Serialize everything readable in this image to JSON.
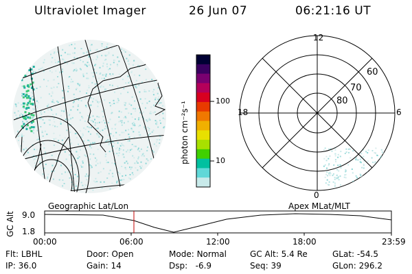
{
  "header": {
    "instrument": "Ultraviolet Imager",
    "date": "26 Jun 07",
    "time": "06:21:16 UT"
  },
  "colorbar": {
    "unit_label": "photon cm⁻²s⁻¹",
    "ticks": [
      "100",
      "10"
    ],
    "colors": [
      "#000033",
      "#3a0060",
      "#7a0070",
      "#b4005a",
      "#d80020",
      "#e83a00",
      "#f07800",
      "#f0b000",
      "#e8e000",
      "#a8e000",
      "#40d000",
      "#00c0a0",
      "#60d8d8",
      "#c8eaea"
    ]
  },
  "polar_plot": {
    "mlt_labels": [
      "12",
      "18",
      "6",
      "0"
    ],
    "lat_labels": [
      "60",
      "70",
      "80"
    ]
  },
  "timeline": {
    "left_label": "Geographic Lat/Lon",
    "right_label": "Apex  MLat/MLT",
    "axis_title": "GC Alt",
    "y_ticks": [
      "9.0",
      "1.8"
    ],
    "x_ticks": [
      "00:00",
      "06:00",
      "12:00",
      "18:00",
      "23:59"
    ],
    "current_marker_color": "#c00000"
  },
  "footer": {
    "row1": [
      {
        "label": "Flt:",
        "value": "LBHL"
      },
      {
        "label": "Door:",
        "value": "Open"
      },
      {
        "label": "Mode:",
        "value": "Normal"
      },
      {
        "label": "GC Alt:",
        "value": "5.4 Re"
      },
      {
        "label": "GLat:",
        "value": "-54.5"
      }
    ],
    "row2": [
      {
        "label": "IP:",
        "value": "36.0"
      },
      {
        "label": "Gain:",
        "value": "14"
      },
      {
        "label": "Dsp:",
        "value": "  -6.9"
      },
      {
        "label": "Seq:",
        "value": "39"
      },
      {
        "label": "GLon:",
        "value": "296.2"
      }
    ]
  }
}
